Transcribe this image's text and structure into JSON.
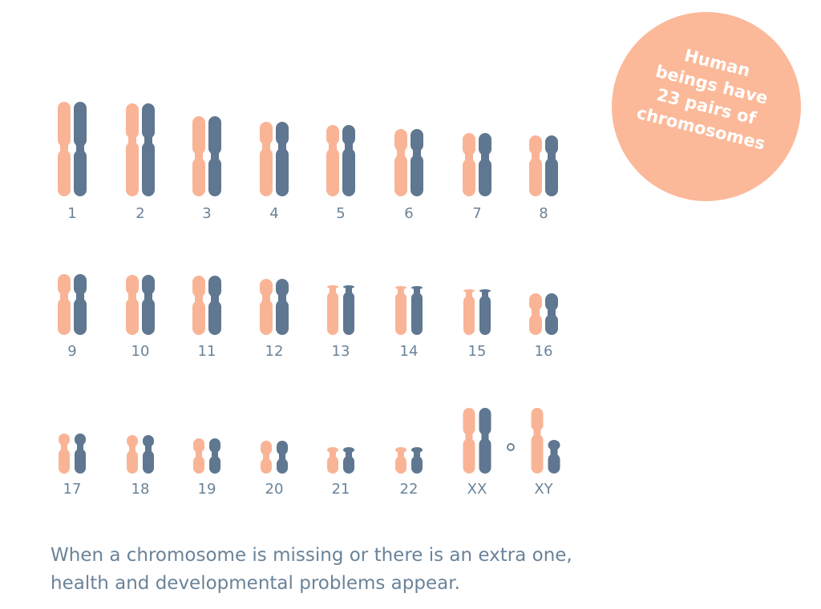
{
  "badge": {
    "lines": [
      "Human",
      "beings have",
      "23 pairs of",
      "chromosomes"
    ]
  },
  "chromosomes": {
    "labels": [
      "1",
      "2",
      "3",
      "4",
      "5",
      "6",
      "7",
      "8",
      "9",
      "10",
      "11",
      "12",
      "13",
      "14",
      "15",
      "16",
      "17",
      "18",
      "19",
      "20",
      "21",
      "22",
      "XX",
      "XY"
    ]
  },
  "caption": {
    "lines": [
      "When a chromosome is missing or there is an extra one,",
      "health and developmental problems appear."
    ]
  }
}
